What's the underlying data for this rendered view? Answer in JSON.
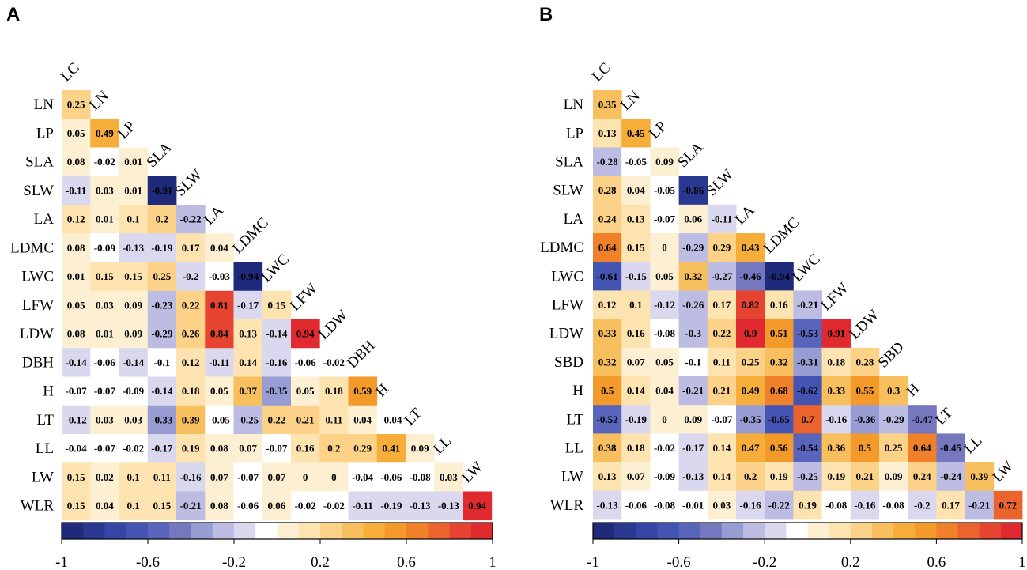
{
  "colorbar": {
    "stops": [
      "#1f2a7a",
      "#2a3891",
      "#3546a6",
      "#4454b3",
      "#5865ba",
      "#7578bf",
      "#979cd2",
      "#bdbde3",
      "#dad8ee",
      "#ffffff",
      "#fdf0d2",
      "#fde3b0",
      "#fbd287",
      "#f8bf5e",
      "#f6ad3a",
      "#f39a2a",
      "#f0802a",
      "#ec642d",
      "#e64431",
      "#e12a2f"
    ],
    "tick_labels": [
      "-1",
      "-0.6",
      "-0.2",
      "0.2",
      "0.6",
      "1"
    ],
    "tick_values": [
      -1,
      -0.6,
      -0.2,
      0.2,
      0.6,
      1
    ]
  },
  "chart_data": [
    {
      "type": "heatmap",
      "panel_label": "A",
      "subtype": "lower-triangle correlation matrix",
      "column_labels": [
        "LC",
        "LN",
        "LP",
        "SLA",
        "SLW",
        "LA",
        "LDMC",
        "LWC",
        "LFW",
        "LDW",
        "DBH",
        "H",
        "LT",
        "LL",
        "LW"
      ],
      "row_labels": [
        "LN",
        "LP",
        "SLA",
        "SLW",
        "LA",
        "LDMC",
        "LWC",
        "LFW",
        "LDW",
        "DBH",
        "H",
        "LT",
        "LL",
        "LW",
        "WLR"
      ],
      "values": [
        [
          "0.25"
        ],
        [
          "0.05",
          "0.49"
        ],
        [
          "0.08",
          "-0.02",
          "0.01"
        ],
        [
          "-0.11",
          "0.03",
          "0.01",
          "-0.91"
        ],
        [
          "0.12",
          "0.01",
          "0.1",
          "0.2",
          "-0.22"
        ],
        [
          "0.08",
          "-0.09",
          "-0.13",
          "-0.19",
          "0.17",
          "0.04"
        ],
        [
          "0.01",
          "0.15",
          "0.15",
          "0.25",
          "-0.2",
          "-0.03",
          "-0.94"
        ],
        [
          "0.05",
          "0.03",
          "0.09",
          "-0.23",
          "0.22",
          "0.81",
          "-0.17",
          "0.15"
        ],
        [
          "0.08",
          "0.01",
          "0.09",
          "-0.29",
          "0.26",
          "0.84",
          "0.13",
          "-0.14",
          "0.94"
        ],
        [
          "-0.14",
          "-0.06",
          "-0.14",
          "-0.1",
          "0.12",
          "-0.11",
          "0.14",
          "-0.16",
          "-0.06",
          "-0.02"
        ],
        [
          "-0.07",
          "-0.07",
          "-0.09",
          "-0.14",
          "0.18",
          "0.05",
          "0.37",
          "-0.35",
          "0.05",
          "0.18",
          "0.59"
        ],
        [
          "-0.12",
          "0.03",
          "0.03",
          "-0.33",
          "0.39",
          "-0.05",
          "-0.25",
          "0.22",
          "0.21",
          "0.11",
          "0.04",
          "-0.04"
        ],
        [
          "-0.04",
          "-0.07",
          "-0.02",
          "-0.17",
          "0.19",
          "0.08",
          "0.07",
          "-0.07",
          "0.16",
          "0.2",
          "0.29",
          "0.41",
          "0.09"
        ],
        [
          "0.15",
          "0.02",
          "0.1",
          "0.11",
          "-0.16",
          "0.07",
          "-0.07",
          "0.07",
          "0",
          "0",
          "-0.04",
          "-0.06",
          "-0.08",
          "0.03"
        ],
        [
          "0.15",
          "0.04",
          "0.1",
          "0.15",
          "-0.21",
          "0.08",
          "-0.06",
          "0.06",
          "-0.02",
          "-0.02",
          "-0.11",
          "-0.19",
          "-0.13",
          "-0.13",
          "0.94"
        ]
      ],
      "color_range": [
        -1,
        1
      ]
    },
    {
      "type": "heatmap",
      "panel_label": "B",
      "subtype": "lower-triangle correlation matrix",
      "column_labels": [
        "LC",
        "LN",
        "LP",
        "SLA",
        "SLW",
        "LA",
        "LDMC",
        "LWC",
        "LFW",
        "LDW",
        "SBD",
        "H",
        "LT",
        "LL",
        "LW"
      ],
      "row_labels": [
        "LN",
        "LP",
        "SLA",
        "SLW",
        "LA",
        "LDMC",
        "LWC",
        "LFW",
        "LDW",
        "SBD",
        "H",
        "LT",
        "LL",
        "LW",
        "WLR"
      ],
      "values": [
        [
          "0.35"
        ],
        [
          "0.13",
          "0.45"
        ],
        [
          "-0.28",
          "-0.05",
          "0.09"
        ],
        [
          "0.28",
          "0.04",
          "-0.05",
          "-0.86"
        ],
        [
          "0.24",
          "0.13",
          "-0.07",
          "0.06",
          "-0.11"
        ],
        [
          "0.64",
          "0.15",
          "0",
          "-0.29",
          "0.29",
          "0.43"
        ],
        [
          "-0.61",
          "-0.15",
          "0.05",
          "0.32",
          "-0.27",
          "-0.46",
          "-0.94"
        ],
        [
          "0.12",
          "0.1",
          "-0.12",
          "-0.26",
          "0.17",
          "0.82",
          "0.16",
          "-0.21"
        ],
        [
          "0.33",
          "0.16",
          "-0.08",
          "-0.3",
          "0.22",
          "0.9",
          "0.51",
          "-0.53",
          "0.91"
        ],
        [
          "0.32",
          "0.07",
          "0.05",
          "-0.1",
          "0.11",
          "0.25",
          "0.32",
          "-0.31",
          "0.18",
          "0.28"
        ],
        [
          "0.5",
          "0.14",
          "0.04",
          "-0.21",
          "0.21",
          "0.49",
          "0.68",
          "-0.62",
          "0.33",
          "0.55",
          "0.3"
        ],
        [
          "-0.52",
          "-0.19",
          "0",
          "0.09",
          "-0.07",
          "-0.35",
          "-0.65",
          "0.7",
          "-0.16",
          "-0.36",
          "-0.29",
          "-0.47"
        ],
        [
          "0.38",
          "0.18",
          "-0.02",
          "-0.17",
          "0.14",
          "0.47",
          "0.56",
          "-0.54",
          "0.36",
          "0.5",
          "0.25",
          "0.64",
          "-0.45"
        ],
        [
          "0.13",
          "0.07",
          "-0.09",
          "-0.13",
          "0.14",
          "0.2",
          "0.19",
          "-0.25",
          "0.19",
          "0.21",
          "0.09",
          "0.24",
          "-0.24",
          "0.39"
        ],
        [
          "-0.13",
          "-0.06",
          "-0.08",
          "-0.01",
          "0.03",
          "-0.16",
          "-0.22",
          "0.19",
          "-0.08",
          "-0.16",
          "-0.08",
          "-0.2",
          "0.17",
          "-0.21",
          "0.72"
        ]
      ],
      "color_range": [
        -1,
        1
      ]
    }
  ]
}
